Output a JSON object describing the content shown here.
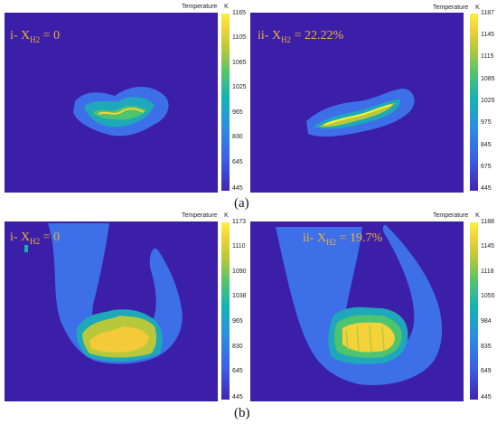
{
  "figure": {
    "caption_a": "(a)",
    "caption_b": "(b)",
    "panels": [
      {
        "id": "a-i",
        "label_prefix": "i- X",
        "label_sub": "H2",
        "label_suffix": " = 0",
        "colorbar_title": "Temperature",
        "colorbar_unit": "K",
        "colorbar_ticks": [
          "1165",
          "1105",
          "1065",
          "1025",
          "965",
          "830",
          "645",
          "445"
        ]
      },
      {
        "id": "a-ii",
        "label_prefix": "ii- X",
        "label_sub": "H2",
        "label_suffix": " = 22.22%",
        "colorbar_title": "Temperature",
        "colorbar_unit": "K",
        "colorbar_ticks": [
          "1187",
          "1145",
          "1115",
          "1085",
          "1025",
          "975",
          "845",
          "675",
          "445"
        ]
      },
      {
        "id": "b-i",
        "label_prefix": "i- X",
        "label_sub": "H2",
        "label_suffix": " = 0",
        "colorbar_title": "Temperature",
        "colorbar_unit": "K",
        "colorbar_ticks": [
          "1173",
          "1110",
          "1090",
          "1038",
          "965",
          "830",
          "645",
          "445"
        ]
      },
      {
        "id": "b-ii",
        "label_prefix": "ii- X",
        "label_sub": "H2",
        "label_suffix": " = 19.7%",
        "colorbar_title": "Temperature",
        "colorbar_unit": "K",
        "colorbar_ticks": [
          "1188",
          "1145",
          "1118",
          "1055",
          "984",
          "835",
          "649",
          "445"
        ]
      }
    ]
  }
}
